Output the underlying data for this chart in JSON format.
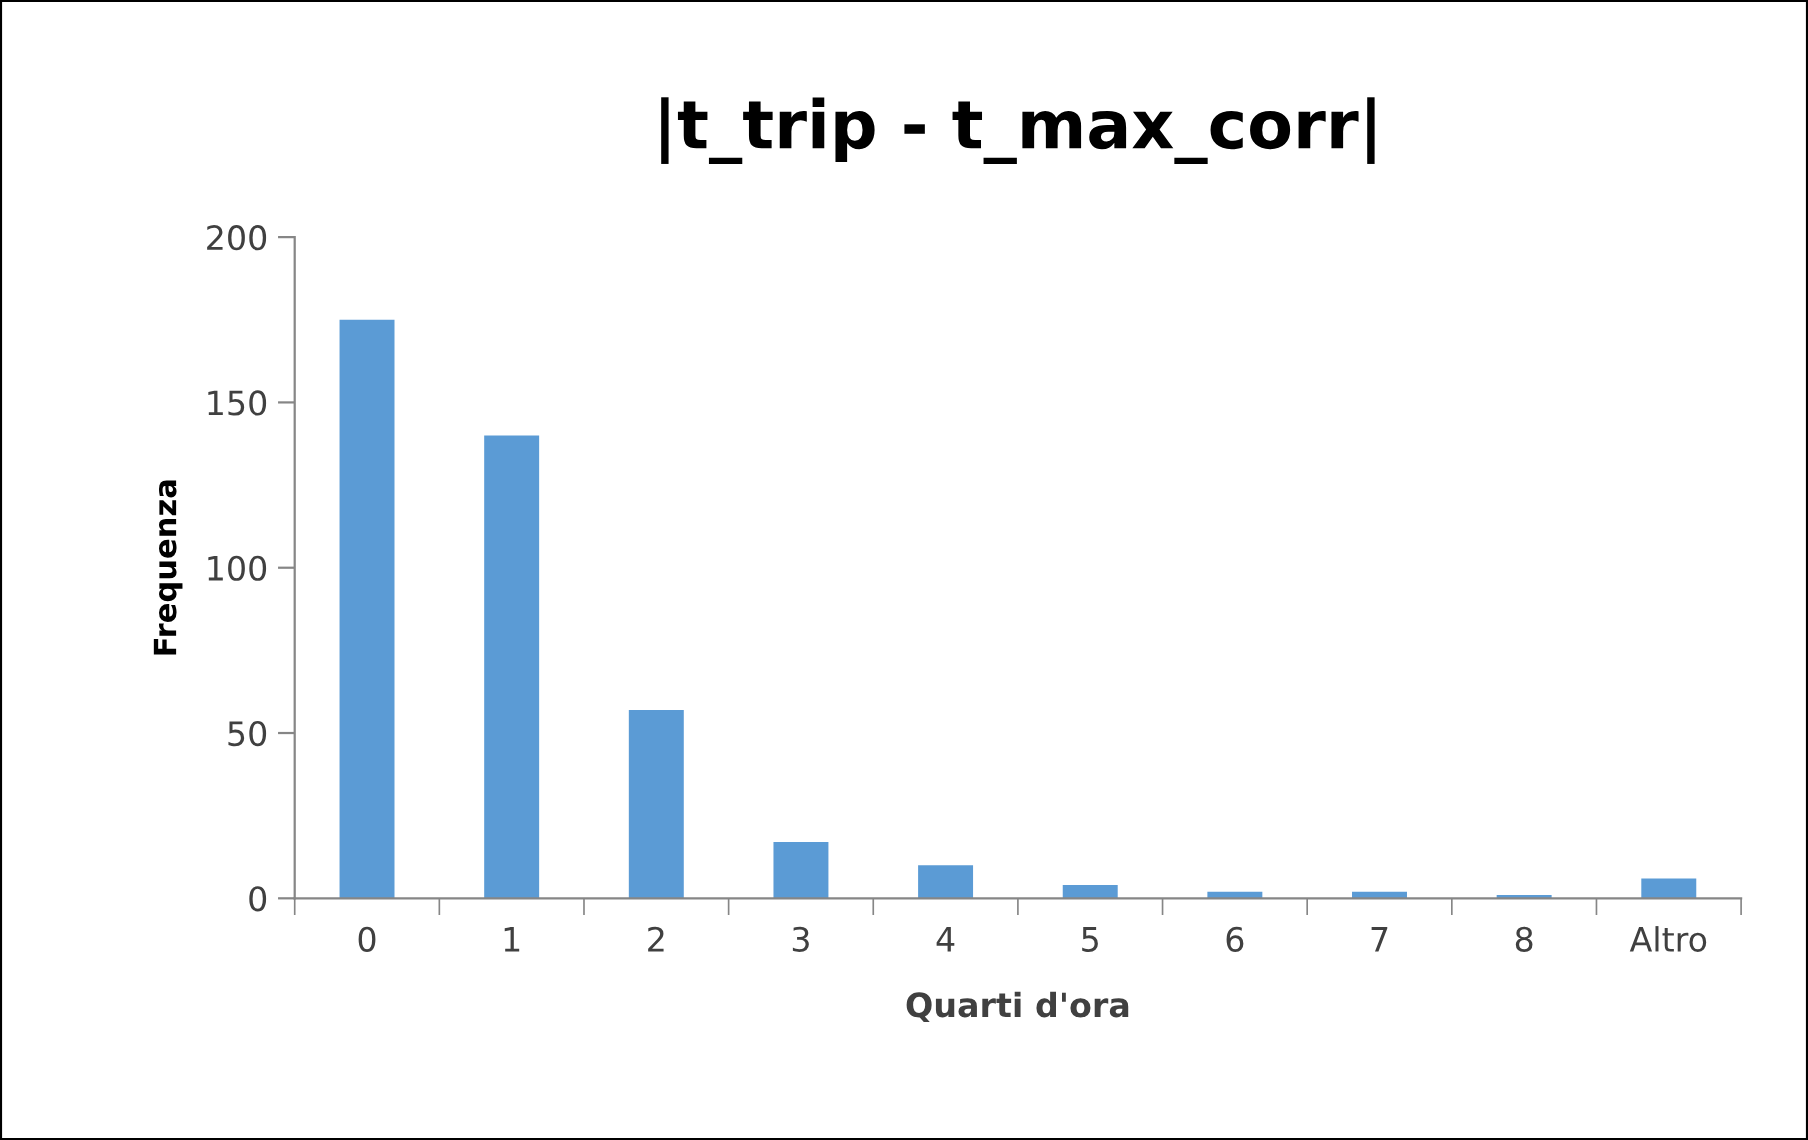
{
  "chart_data": {
    "type": "bar",
    "title": "|t_trip - t_max_corr|",
    "xlabel": "Quarti d'ora",
    "ylabel": "Frequenza",
    "categories": [
      "0",
      "1",
      "2",
      "3",
      "4",
      "5",
      "6",
      "7",
      "8",
      "Altro"
    ],
    "values": [
      175,
      140,
      57,
      17,
      10,
      4,
      2,
      2,
      1,
      6
    ],
    "color": "#5b9bd5",
    "ylim": [
      0,
      200
    ],
    "yticks": [
      0,
      50,
      100,
      150,
      200
    ],
    "grid": false,
    "legend": false
  }
}
